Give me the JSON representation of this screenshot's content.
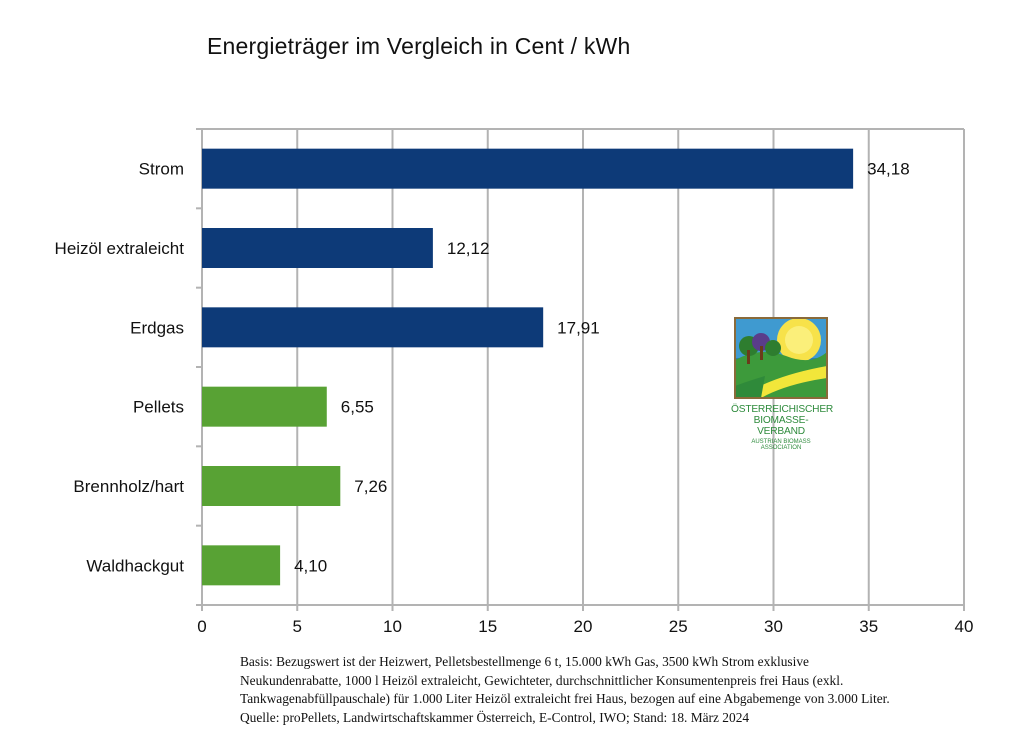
{
  "chart_data": {
    "type": "bar",
    "orientation": "horizontal",
    "title": "Energieträger im Vergleich in Cent / kWh",
    "categories": [
      "Strom",
      "Heizöl extraleicht",
      "Erdgas",
      "Pellets",
      "Brennholz/hart",
      "Waldhackgut"
    ],
    "values": [
      34.18,
      12.12,
      17.91,
      6.55,
      7.26,
      4.1
    ],
    "value_labels": [
      "34,18",
      "12,12",
      "17,91",
      "6,55",
      "7,26",
      "4,10"
    ],
    "bar_colors": [
      "#0d3a78",
      "#0d3a78",
      "#0d3a78",
      "#58a234",
      "#58a234",
      "#58a234"
    ],
    "xlim": [
      0,
      40
    ],
    "xticks": [
      0,
      5,
      10,
      15,
      20,
      25,
      30,
      35,
      40
    ],
    "xtick_labels": [
      "0",
      "5",
      "10",
      "15",
      "20",
      "25",
      "30",
      "35",
      "40"
    ],
    "grid": true,
    "xlabel": "",
    "ylabel": ""
  },
  "logo": {
    "line1": "ÖSTERREICHISCHER",
    "line2": "BIOMASSE-VERBAND",
    "line3": "AUSTRIAN BIOMASS ASSOCIATION"
  },
  "footnote": {
    "line1": "Basis: Bezugswert ist der Heizwert, Pelletsbestellmenge 6 t, 15.000 kWh Gas, 3500 kWh Strom exklusive",
    "line2": "Neukundenrabatte, 1000 l Heizöl extraleicht, Gewichteter, durchschnittlicher Konsumentenpreis frei Haus (exkl.",
    "line3": "Tankwagenabfüllpauschale) für 1.000 Liter Heizöl extraleicht frei Haus, bezogen auf eine Abgabemenge von 3.000 Liter.",
    "line4": "Quelle: proPellets, Landwirtschaftskammer Österreich, E-Control, IWO; Stand: 18. März 2024"
  }
}
